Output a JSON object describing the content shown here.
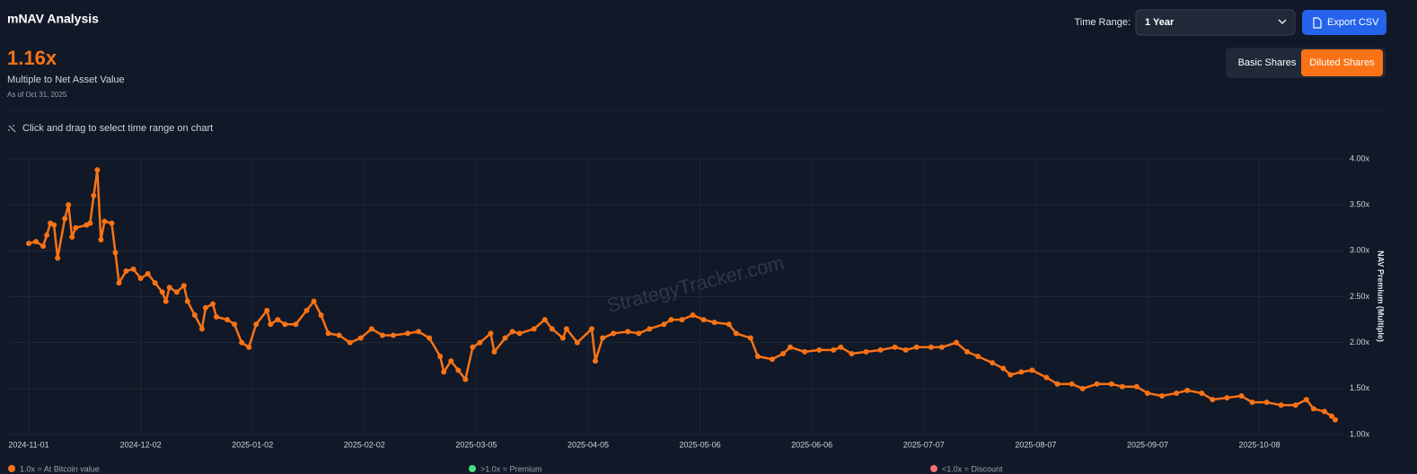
{
  "header": {
    "title": "mNAV Analysis",
    "time_range_label": "Time Range:",
    "time_range_value": "1 Year",
    "export_button": "Export CSV"
  },
  "summary": {
    "value": "1.16x",
    "label": "Multiple to Net Asset Value",
    "as_of": "As of Oct 31, 2025"
  },
  "share_toggle": {
    "options": [
      "Basic Shares",
      "Diluted Shares"
    ],
    "active": 1
  },
  "hint": "Click and drag to select time range on chart",
  "watermark": "StrategyTracker.com",
  "chart_data": {
    "type": "line",
    "y_label": "NAV Premium (Multiple)",
    "color": "#f97316",
    "grid": true,
    "xlim": [
      "2024-11-01",
      "2025-10-31"
    ],
    "xticks": [
      "2024-11-01",
      "2024-12-02",
      "2025-01-02",
      "2025-02-02",
      "2025-03-05",
      "2025-04-05",
      "2025-05-06",
      "2025-06-06",
      "2025-07-07",
      "2025-08-07",
      "2025-09-07",
      "2025-10-08"
    ],
    "ylim": [
      1,
      4
    ],
    "yticks": [
      {
        "value": 1,
        "label": "1.00x"
      },
      {
        "value": 1.5,
        "label": "1.50x"
      },
      {
        "value": 2,
        "label": "2.00x"
      },
      {
        "value": 2.5,
        "label": "2.50x"
      },
      {
        "value": 3,
        "label": "3.00x"
      },
      {
        "value": 3.5,
        "label": "3.50x"
      },
      {
        "value": 4,
        "label": "4.00x"
      }
    ],
    "x": [
      "2024-11-01",
      "2024-11-03",
      "2024-11-05",
      "2024-11-06",
      "2024-11-07",
      "2024-11-08",
      "2024-11-09",
      "2024-11-11",
      "2024-11-12",
      "2024-11-13",
      "2024-11-14",
      "2024-11-17",
      "2024-11-18",
      "2024-11-19",
      "2024-11-20",
      "2024-11-21",
      "2024-11-22",
      "2024-11-24",
      "2024-11-25",
      "2024-11-26",
      "2024-11-28",
      "2024-11-30",
      "2024-12-02",
      "2024-12-04",
      "2024-12-06",
      "2024-12-08",
      "2024-12-09",
      "2024-12-10",
      "2024-12-12",
      "2024-12-14",
      "2024-12-15",
      "2024-12-17",
      "2024-12-19",
      "2024-12-20",
      "2024-12-22",
      "2024-12-23",
      "2024-12-26",
      "2024-12-28",
      "2024-12-30",
      "2025-01-01",
      "2025-01-03",
      "2025-01-06",
      "2025-01-07",
      "2025-01-09",
      "2025-01-11",
      "2025-01-14",
      "2025-01-17",
      "2025-01-19",
      "2025-01-21",
      "2025-01-23",
      "2025-01-26",
      "2025-01-29",
      "2025-02-01",
      "2025-02-04",
      "2025-02-07",
      "2025-02-10",
      "2025-02-14",
      "2025-02-17",
      "2025-02-20",
      "2025-02-23",
      "2025-02-24",
      "2025-02-26",
      "2025-02-28",
      "2025-03-02",
      "2025-03-04",
      "2025-03-06",
      "2025-03-09",
      "2025-03-10",
      "2025-03-13",
      "2025-03-15",
      "2025-03-17",
      "2025-03-21",
      "2025-03-24",
      "2025-03-26",
      "2025-03-29",
      "2025-03-30",
      "2025-04-02",
      "2025-04-06",
      "2025-04-07",
      "2025-04-09",
      "2025-04-12",
      "2025-04-16",
      "2025-04-19",
      "2025-04-22",
      "2025-04-26",
      "2025-04-28",
      "2025-05-01",
      "2025-05-04",
      "2025-05-07",
      "2025-05-10",
      "2025-05-14",
      "2025-05-16",
      "2025-05-20",
      "2025-05-22",
      "2025-05-26",
      "2025-05-29",
      "2025-05-31",
      "2025-06-04",
      "2025-06-08",
      "2025-06-12",
      "2025-06-14",
      "2025-06-17",
      "2025-06-21",
      "2025-06-25",
      "2025-06-29",
      "2025-07-02",
      "2025-07-05",
      "2025-07-09",
      "2025-07-12",
      "2025-07-16",
      "2025-07-19",
      "2025-07-22",
      "2025-07-26",
      "2025-07-29",
      "2025-07-31",
      "2025-08-03",
      "2025-08-06",
      "2025-08-10",
      "2025-08-13",
      "2025-08-17",
      "2025-08-20",
      "2025-08-24",
      "2025-08-28",
      "2025-08-31",
      "2025-09-04",
      "2025-09-07",
      "2025-09-11",
      "2025-09-15",
      "2025-09-18",
      "2025-09-22",
      "2025-09-25",
      "2025-09-29",
      "2025-10-03",
      "2025-10-06",
      "2025-10-10",
      "2025-10-14",
      "2025-10-18",
      "2025-10-21",
      "2025-10-23",
      "2025-10-26",
      "2025-10-28",
      "2025-10-29"
    ],
    "values": [
      3.08,
      3.1,
      3.05,
      3.17,
      3.3,
      3.28,
      2.92,
      3.35,
      3.5,
      3.15,
      3.25,
      3.28,
      3.3,
      3.6,
      3.88,
      3.12,
      3.32,
      3.3,
      2.98,
      2.65,
      2.78,
      2.8,
      2.7,
      2.75,
      2.65,
      2.55,
      2.45,
      2.6,
      2.55,
      2.62,
      2.45,
      2.3,
      2.15,
      2.38,
      2.42,
      2.28,
      2.25,
      2.2,
      2.0,
      1.95,
      2.2,
      2.35,
      2.2,
      2.25,
      2.2,
      2.2,
      2.35,
      2.45,
      2.3,
      2.1,
      2.08,
      2.0,
      2.05,
      2.15,
      2.08,
      2.08,
      2.1,
      2.12,
      2.05,
      1.85,
      1.68,
      1.8,
      1.7,
      1.6,
      1.95,
      2.0,
      2.1,
      1.9,
      2.05,
      2.12,
      2.1,
      2.15,
      2.25,
      2.15,
      2.05,
      2.15,
      2.0,
      2.15,
      1.8,
      2.05,
      2.1,
      2.12,
      2.1,
      2.15,
      2.2,
      2.25,
      2.25,
      2.3,
      2.25,
      2.22,
      2.2,
      2.1,
      2.05,
      1.85,
      1.82,
      1.88,
      1.95,
      1.9,
      1.92,
      1.92,
      1.95,
      1.88,
      1.9,
      1.92,
      1.95,
      1.92,
      1.95,
      1.95,
      1.95,
      2.0,
      1.9,
      1.85,
      1.78,
      1.72,
      1.65,
      1.68,
      1.7,
      1.62,
      1.55,
      1.55,
      1.5,
      1.55,
      1.55,
      1.52,
      1.52,
      1.45,
      1.42,
      1.45,
      1.48,
      1.45,
      1.38,
      1.4,
      1.42,
      1.35,
      1.35,
      1.32,
      1.32,
      1.38,
      1.28,
      1.25,
      1.2,
      1.16
    ]
  },
  "legend": [
    {
      "label": "1.0x = At Bitcoin value",
      "color": "#f97316"
    },
    {
      "label": ">1.0x = Premium",
      "color": "#4ade80"
    },
    {
      "label": "<1.0x = Discount",
      "color": "#f87171"
    }
  ]
}
